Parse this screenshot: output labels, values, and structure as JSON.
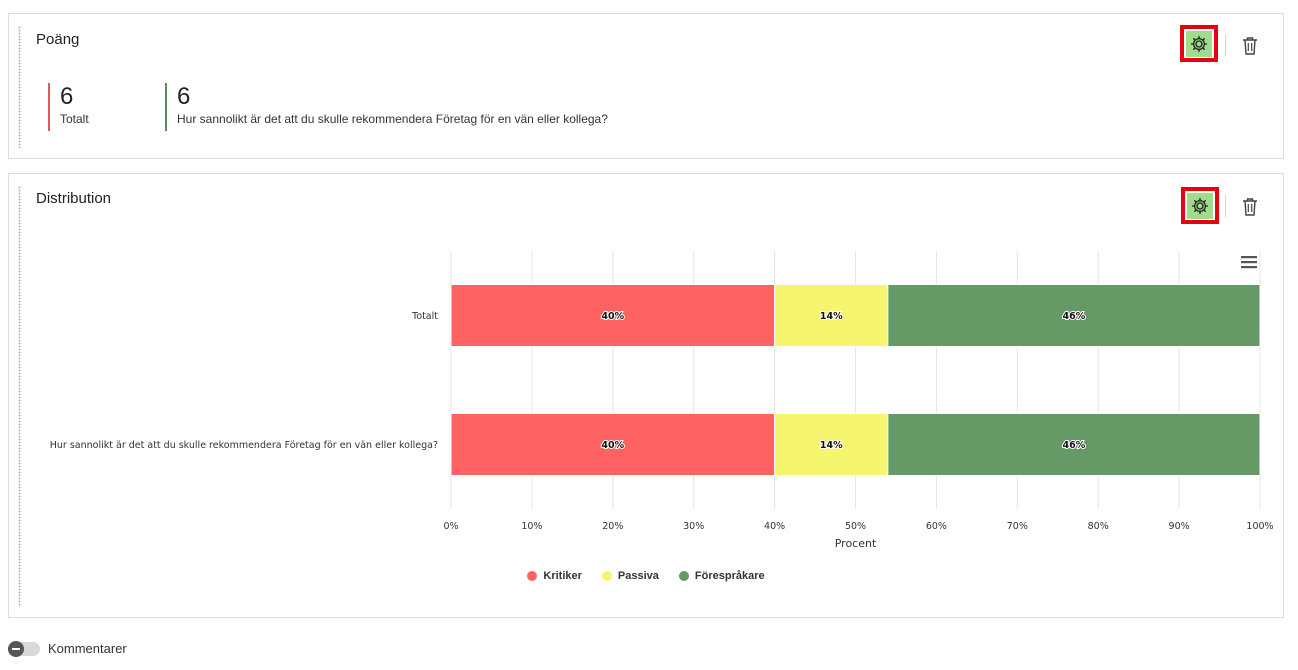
{
  "score_card": {
    "title": "Poäng",
    "stats": [
      {
        "value": "6",
        "label": "Totalt"
      },
      {
        "value": "6",
        "label": "Hur sannolikt är det att du skulle rekommendera Företag för en vän eller kollega?"
      }
    ],
    "icons": {
      "settings": "gear-icon",
      "delete": "trash-icon"
    }
  },
  "distribution_card": {
    "title": "Distribution",
    "icons": {
      "settings": "gear-icon",
      "delete": "trash-icon",
      "menu": "hamburger-menu-icon"
    }
  },
  "chart_data": {
    "type": "bar",
    "orientation": "horizontal",
    "stacked": "percent",
    "categories": [
      "Totalt",
      "Hur sannolikt är det att du skulle rekommendera Företag för en vän eller kollega?"
    ],
    "series": [
      {
        "name": "Kritiker",
        "color": "#ff6262",
        "values": [
          40,
          40
        ],
        "labels": [
          "40%",
          "40%"
        ]
      },
      {
        "name": "Passiva",
        "color": "#f5f56e",
        "values": [
          14,
          14
        ],
        "labels": [
          "14%",
          "14%"
        ]
      },
      {
        "name": "Förespråkare",
        "color": "#659966",
        "values": [
          46,
          46
        ],
        "labels": [
          "46%",
          "46%"
        ]
      }
    ],
    "xlabel": "Procent",
    "xlim": [
      0,
      100
    ],
    "xticks": [
      "0%",
      "10%",
      "20%",
      "30%",
      "40%",
      "50%",
      "60%",
      "70%",
      "80%",
      "90%",
      "100%"
    ],
    "grid": true,
    "legend_position": "bottom-center"
  },
  "footer": {
    "comments_label": "Kommentarer",
    "comments_toggle": "off"
  }
}
